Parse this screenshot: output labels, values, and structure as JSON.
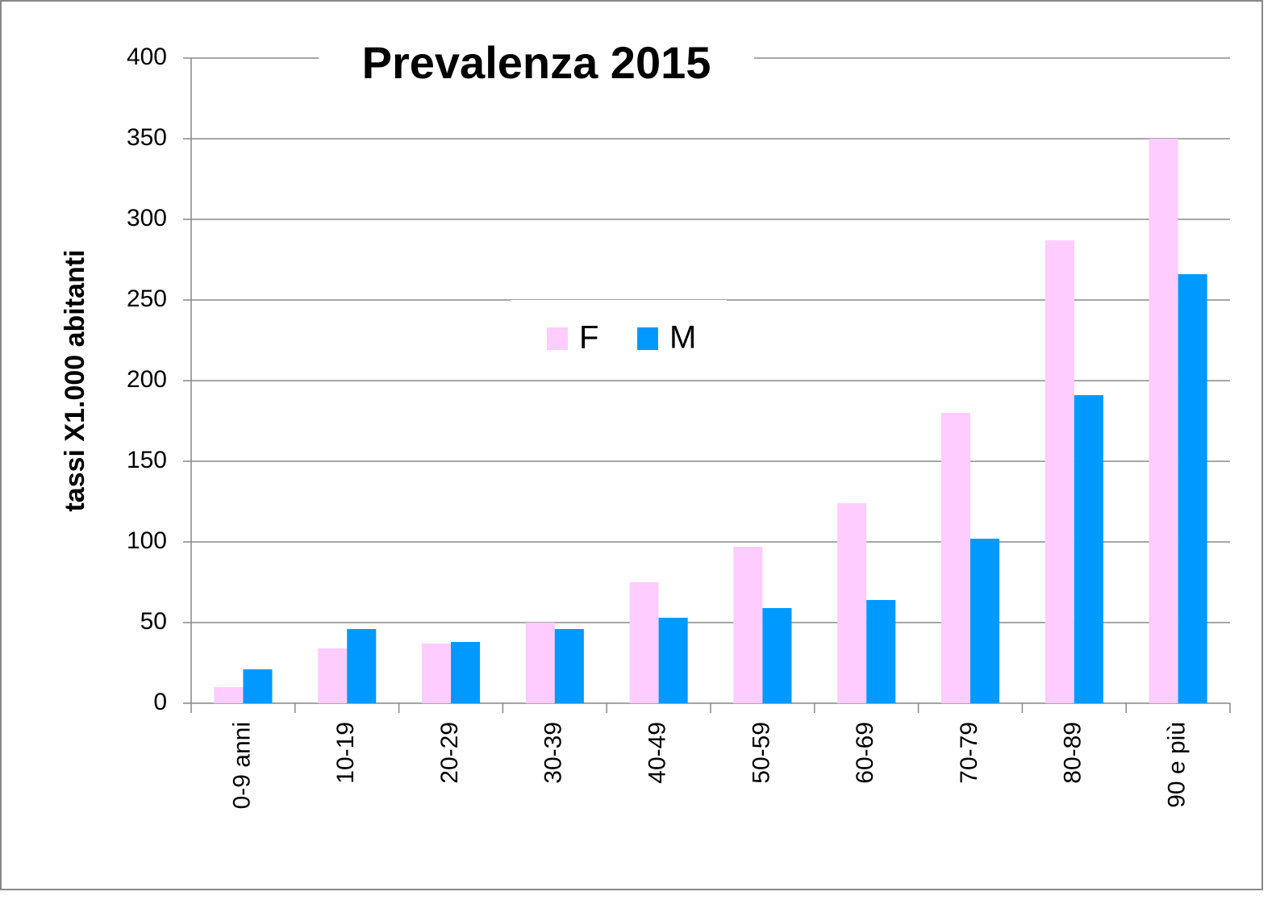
{
  "chart_data": {
    "type": "bar",
    "title": "Prevalenza 2015",
    "y_label": "tassi X1.000 abitanti",
    "categories": [
      "0-9 anni",
      "10-19",
      "20-29",
      "30-39",
      "40-49",
      "50-59",
      "60-69",
      "70-79",
      "80-89",
      "90 e più"
    ],
    "series": [
      {
        "name": "F",
        "color": "#ffccff",
        "values": [
          10,
          34,
          37,
          50,
          75,
          97,
          124,
          180,
          287,
          350
        ]
      },
      {
        "name": "M",
        "color": "#0099ff",
        "values": [
          21,
          46,
          38,
          46,
          53,
          59,
          64,
          102,
          191,
          266
        ]
      }
    ],
    "ylim": [
      0,
      400
    ],
    "yticks": [
      0,
      50,
      100,
      150,
      200,
      250,
      300,
      350,
      400
    ],
    "grid": true
  }
}
